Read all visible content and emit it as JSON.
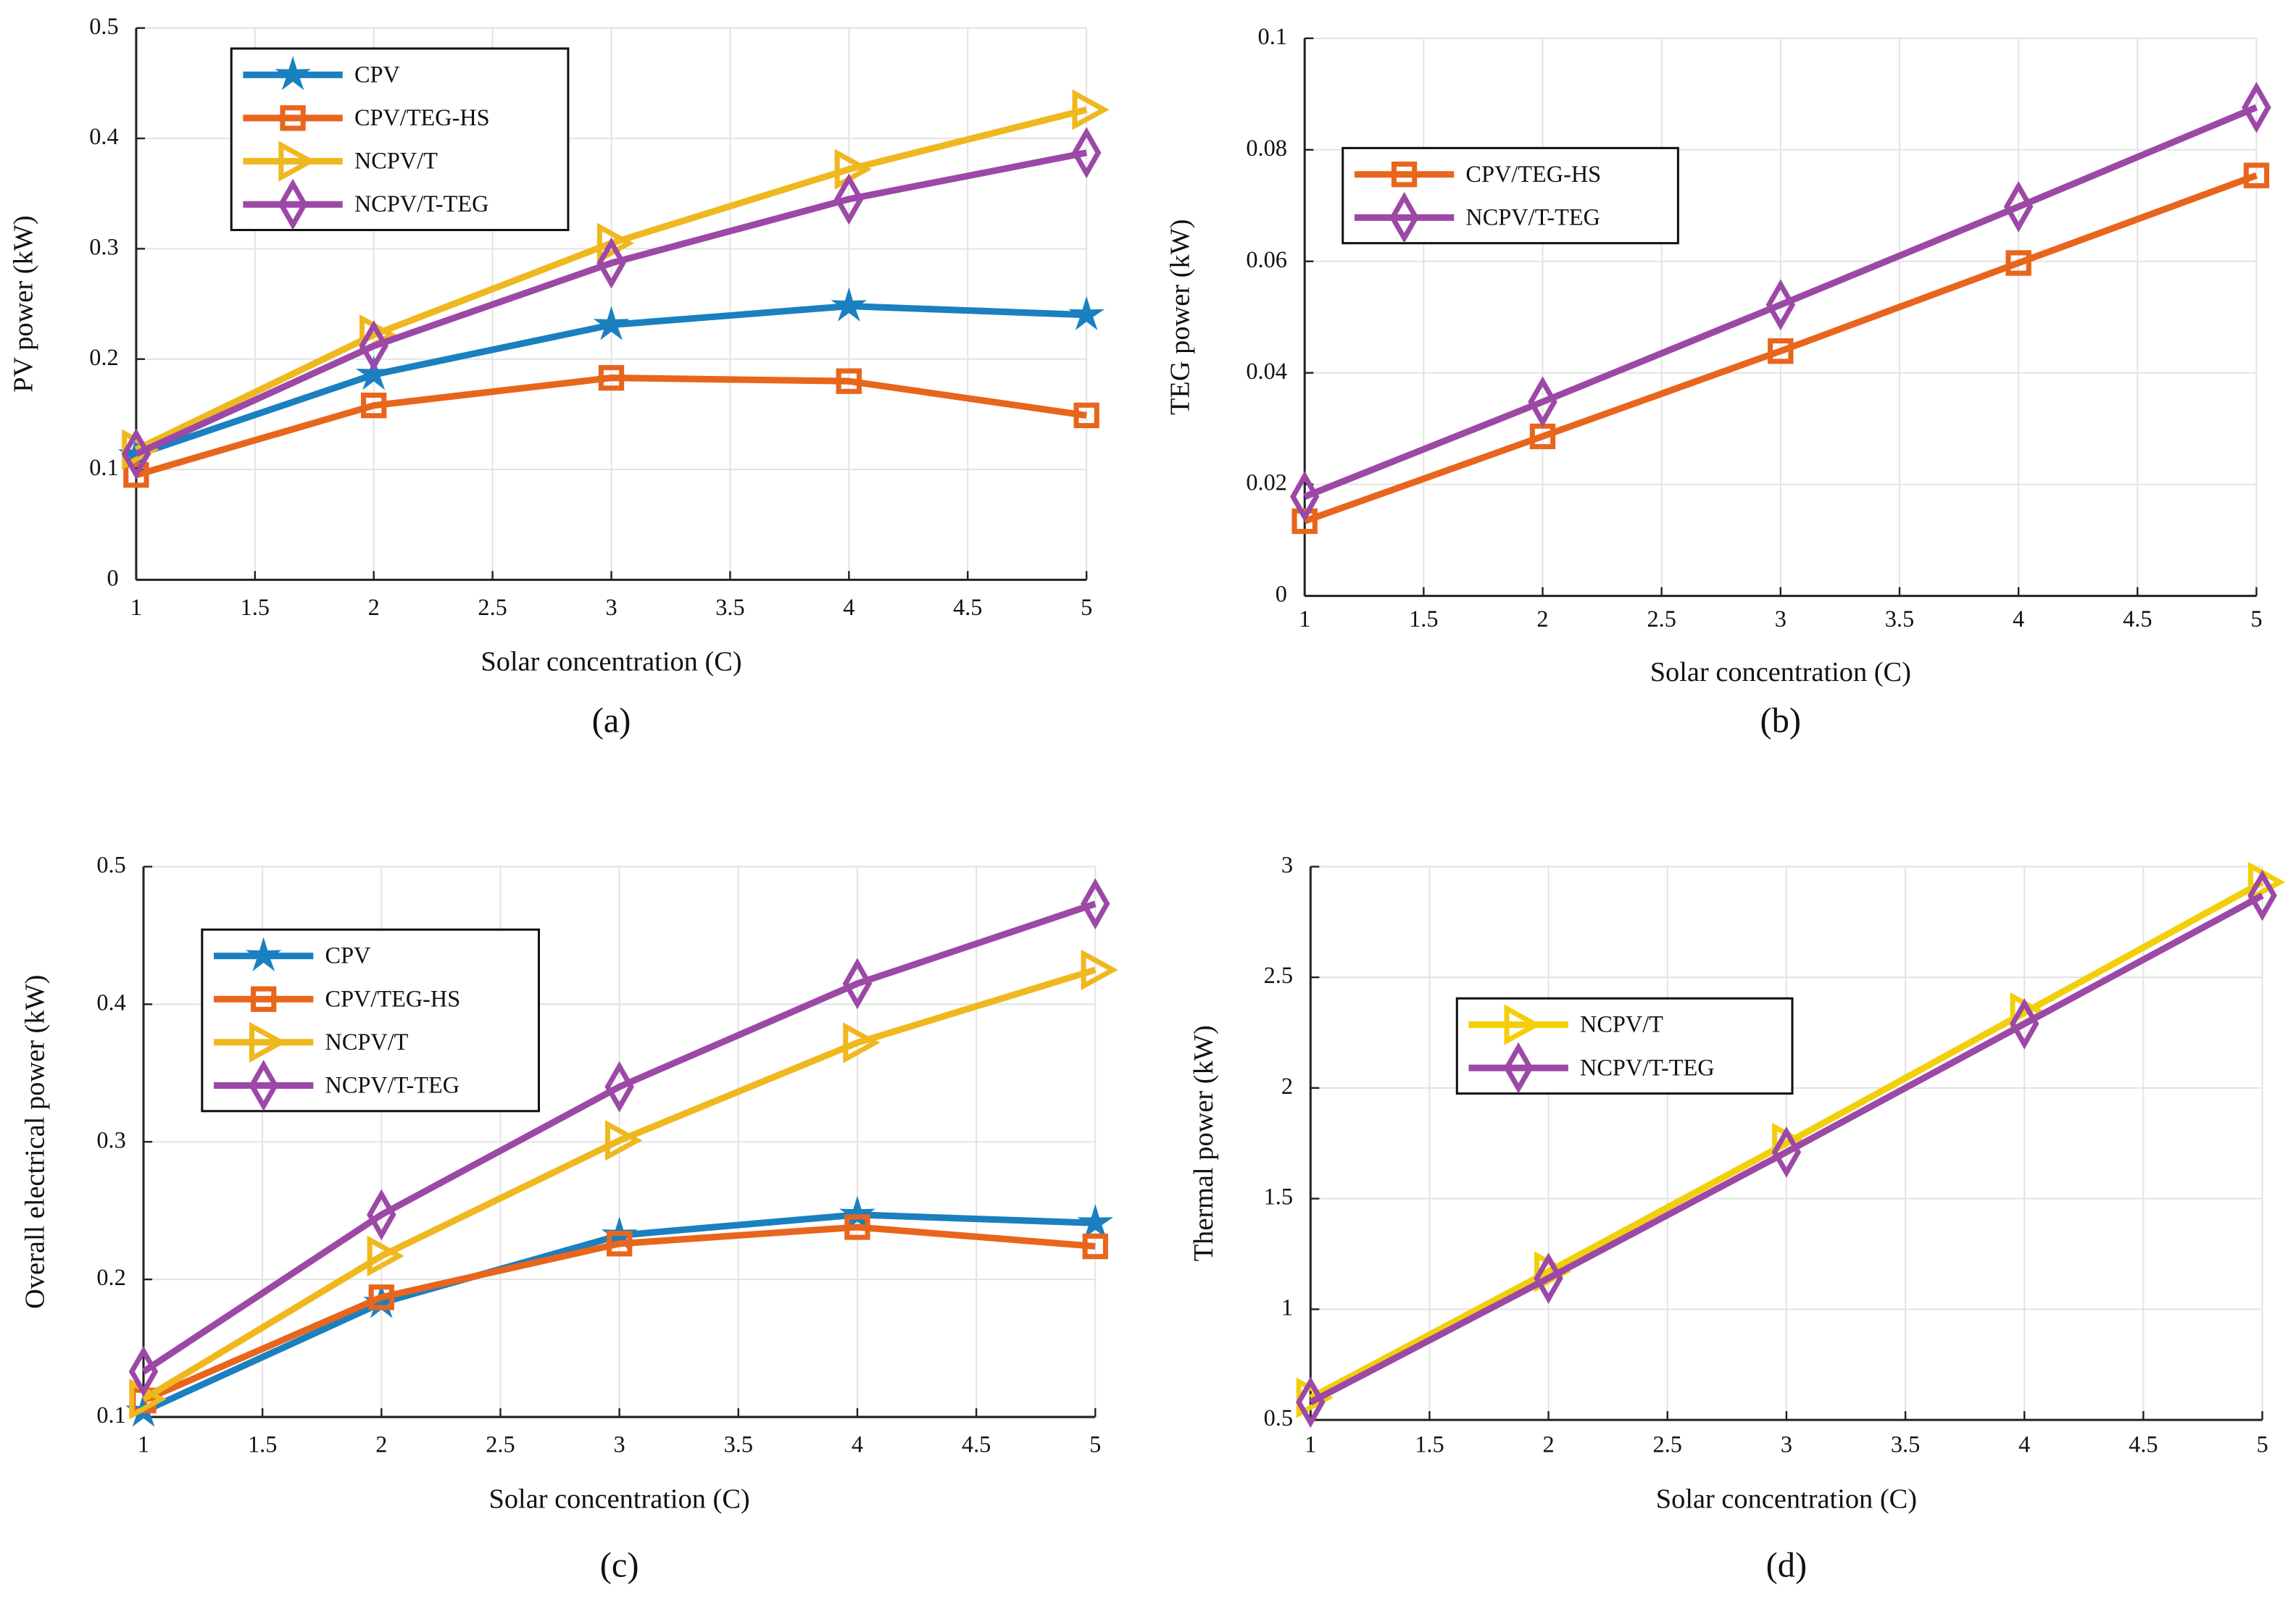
{
  "colors": {
    "CPV": "#1a80c0",
    "CPV/TEG-HS": "#e8651c",
    "NCPV/T": "#efb81f",
    "NCPV/T-TEG": "#9c48a6",
    "NCPV/T_d": "#f2cf0a"
  },
  "chart_data": [
    {
      "type": "line",
      "panel": "(a)",
      "title": "",
      "xlabel": "Solar concentration (C)",
      "ylabel": "PV power (kW)",
      "x": [
        1,
        2,
        3,
        4,
        5
      ],
      "xlim": [
        1,
        5
      ],
      "ylim": [
        0,
        0.5
      ],
      "xticks": [
        "1",
        "1.5",
        "2",
        "2.5",
        "3",
        "3.5",
        "4",
        "4.5",
        "5"
      ],
      "yticks": [
        "0",
        "0.1",
        "0.2",
        "0.3",
        "0.4",
        "0.5"
      ],
      "grid": true,
      "legend": "top-left",
      "series": [
        {
          "name": "CPV",
          "marker": "star",
          "values": [
            0.113,
            0.186,
            0.231,
            0.248,
            0.24
          ]
        },
        {
          "name": "CPV/TEG-HS",
          "marker": "square",
          "values": [
            0.095,
            0.158,
            0.183,
            0.18,
            0.149
          ]
        },
        {
          "name": "NCPV/T",
          "marker": "triangle-right",
          "values": [
            0.118,
            0.222,
            0.305,
            0.372,
            0.426
          ]
        },
        {
          "name": "NCPV/T-TEG",
          "marker": "diamond",
          "values": [
            0.114,
            0.212,
            0.287,
            0.345,
            0.387
          ]
        }
      ]
    },
    {
      "type": "line",
      "panel": "(b)",
      "title": "",
      "xlabel": "Solar concentration (C)",
      "ylabel": "TEG power (kW)",
      "x": [
        1,
        2,
        3,
        4,
        5
      ],
      "xlim": [
        1,
        5
      ],
      "ylim": [
        0,
        0.1
      ],
      "xticks": [
        "1",
        "1.5",
        "2",
        "2.5",
        "3",
        "3.5",
        "4",
        "4.5",
        "5"
      ],
      "yticks": [
        "0",
        "0.02",
        "0.04",
        "0.06",
        "0.08",
        "0.1"
      ],
      "grid": true,
      "legend": "top-left",
      "series": [
        {
          "name": "CPV/TEG-HS",
          "marker": "square",
          "values": [
            0.0134,
            0.0286,
            0.0439,
            0.0597,
            0.0754
          ]
        },
        {
          "name": "NCPV/T-TEG",
          "marker": "diamond",
          "values": [
            0.0178,
            0.0348,
            0.0522,
            0.0698,
            0.0876
          ]
        }
      ]
    },
    {
      "type": "line",
      "panel": "(c)",
      "title": "",
      "xlabel": "Solar concentration (C)",
      "ylabel": "Overall electrical power (kW)",
      "x": [
        1,
        2,
        3,
        4,
        5
      ],
      "xlim": [
        1,
        5
      ],
      "ylim": [
        0.1,
        0.5
      ],
      "xticks": [
        "1",
        "1.5",
        "2",
        "2.5",
        "3",
        "3.5",
        "4",
        "4.5",
        "5"
      ],
      "yticks": [
        "0.1",
        "0.2",
        "0.3",
        "0.4",
        "0.5"
      ],
      "grid": true,
      "legend": "top-left",
      "series": [
        {
          "name": "CPV",
          "marker": "star",
          "values": [
            0.104,
            0.183,
            0.232,
            0.247,
            0.241
          ]
        },
        {
          "name": "CPV/TEG-HS",
          "marker": "square",
          "values": [
            0.112,
            0.187,
            0.226,
            0.238,
            0.224
          ]
        },
        {
          "name": "NCPV/T",
          "marker": "triangle-right",
          "values": [
            0.113,
            0.217,
            0.301,
            0.372,
            0.425
          ]
        },
        {
          "name": "NCPV/T-TEG",
          "marker": "diamond",
          "values": [
            0.133,
            0.247,
            0.34,
            0.415,
            0.473
          ]
        }
      ]
    },
    {
      "type": "line",
      "panel": "(d)",
      "title": "",
      "xlabel": "Solar concentration (C)",
      "ylabel": "Thermal power (kW)",
      "x": [
        1,
        2,
        3,
        4,
        5
      ],
      "xlim": [
        1,
        5
      ],
      "ylim": [
        0.5,
        3
      ],
      "xticks": [
        "1",
        "1.5",
        "2",
        "2.5",
        "3",
        "3.5",
        "4",
        "4.5",
        "5"
      ],
      "yticks": [
        "0.5",
        "1",
        "1.5",
        "2",
        "2.5",
        "3"
      ],
      "grid": true,
      "legend": "top-left",
      "series": [
        {
          "name": "NCPV/T",
          "marker": "triangle-right",
          "values": [
            0.6,
            1.17,
            1.75,
            2.34,
            2.93
          ]
        },
        {
          "name": "NCPV/T-TEG",
          "marker": "diamond",
          "values": [
            0.58,
            1.14,
            1.71,
            2.29,
            2.87
          ]
        }
      ]
    }
  ]
}
